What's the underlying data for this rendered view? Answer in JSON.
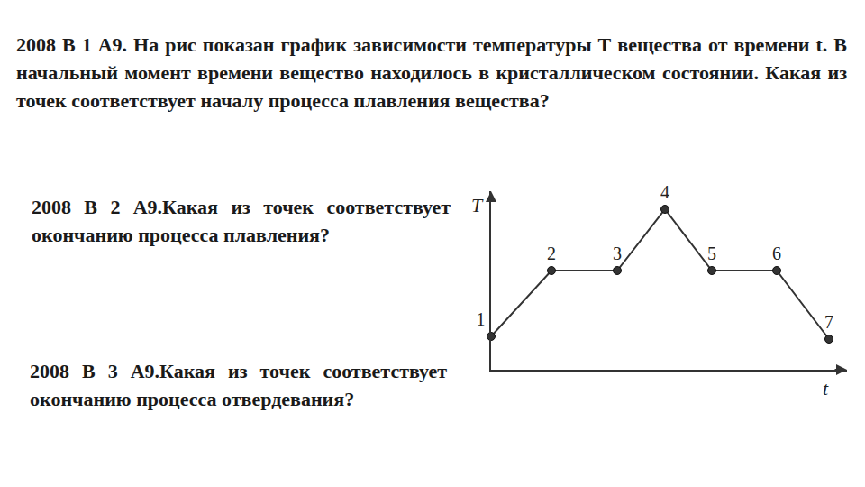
{
  "questions": [
    "2008 В 1 А9. На рис показан график зависимости температуры Т вещества от времени t.  В начальный момент времени вещество находилось в кристаллическом состоянии. Какая из точек соответствует началу процесса плавления вещества?",
    "2008  В 2  А9.Какая из точек соответствует окончанию процесса плавления?",
    "2008  В 3  А9.Какая из точек соответствует окончанию процесса отвердевания?"
  ],
  "chart_data": {
    "type": "line",
    "xlabel": "t",
    "ylabel": "T",
    "point_labels": [
      "1",
      "2",
      "3",
      "4",
      "5",
      "6",
      "7"
    ],
    "x": [
      0,
      6.7,
      14,
      19.3,
      24.5,
      31.7,
      37.5
    ],
    "values": [
      3.7,
      11,
      11,
      17.8,
      11,
      11,
      3.4
    ],
    "xlim": [
      0,
      39.5
    ],
    "ylim": [
      0,
      19.8
    ],
    "xticks": [],
    "yticks": [],
    "tick_labels": false,
    "grid": false,
    "color": "#333333",
    "marker": "circle"
  }
}
